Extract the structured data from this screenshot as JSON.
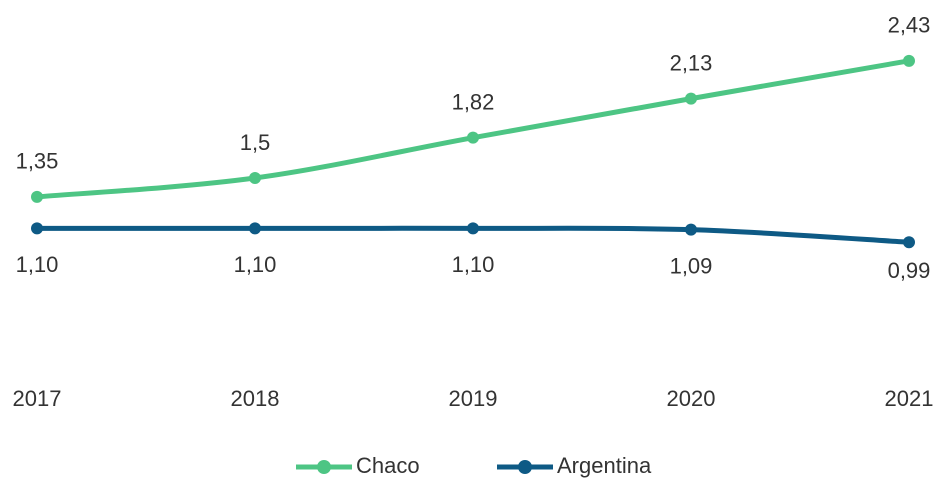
{
  "chart_data": {
    "type": "line",
    "categories": [
      "2017",
      "2018",
      "2019",
      "2020",
      "2021"
    ],
    "series": [
      {
        "name": "Chaco",
        "color": "#4dc584",
        "values": [
          1.35,
          1.5,
          1.82,
          2.13,
          2.43
        ],
        "value_labels": [
          "1,35",
          "1,5",
          "1,82",
          "2,13",
          "2,43"
        ]
      },
      {
        "name": "Argentina",
        "color": "#0e5a85",
        "values": [
          1.1,
          1.1,
          1.1,
          1.09,
          0.99
        ],
        "value_labels": [
          "1,10",
          "1,10",
          "1,10",
          "1,09",
          "0,99"
        ]
      }
    ],
    "legend": "bottom"
  }
}
